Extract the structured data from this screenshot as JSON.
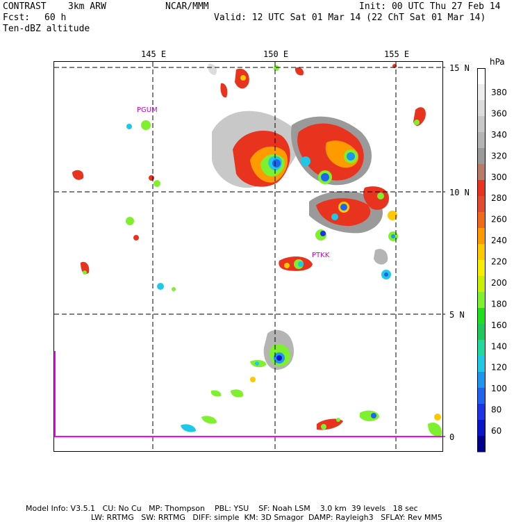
{
  "header": {
    "model": "CONTRAST",
    "resolution": "3km ARW",
    "org": "NCAR/MMM",
    "init": "Init: 00 UTC Thu 27 Feb 14",
    "fcst_label": "Fcst:",
    "fcst_value": "60 h",
    "valid": "Valid: 12 UTC Sat 01 Mar 14 (22 ChT Sat 01 Mar 14)",
    "field": "Ten-dBZ altitude"
  },
  "map": {
    "lon_labels": [
      "145 E",
      "150 E",
      "155 E"
    ],
    "lat_labels": [
      "15 N",
      "10 N",
      "5 N",
      "0"
    ],
    "stations": [
      "PGUM",
      "PTKK"
    ],
    "station_color": "#cc00cc",
    "equator_line_color": "#ff00ff"
  },
  "colorbar": {
    "unit": "hPa",
    "labels": [
      "380",
      "360",
      "340",
      "320",
      "300",
      "280",
      "260",
      "240",
      "220",
      "200",
      "180",
      "160",
      "140",
      "120",
      "100",
      "80",
      "60"
    ],
    "colors": [
      "#ffffff",
      "#eeeeee",
      "#dcdcdc",
      "#c8c8c8",
      "#b4b4b4",
      "#9a9a9a",
      "#b97a6a",
      "#e8331f",
      "#e34a2e",
      "#f06a1a",
      "#ff9a00",
      "#ffc800",
      "#f6f000",
      "#c8f000",
      "#7ef02e",
      "#1ee01e",
      "#1ec85a",
      "#20d8a0",
      "#1ec8e6",
      "#1e96f0",
      "#1e64f0",
      "#1e32e6",
      "#0a14c8",
      "#00008c"
    ]
  },
  "footer": {
    "line1": [
      "Model Info: V3.5.1",
      "CU: No Cu",
      "MP: Thompson",
      "PBL: YSU",
      "SF: Noah LSM",
      "3.0 km",
      "39 levels",
      "18 sec"
    ],
    "line2": [
      "LW: RRTMG",
      "SW: RRTMG",
      "DIFF: simple",
      "KM: 3D Smagor",
      "DAMP: Rayleigh3",
      "SFLAY: Rev MM5"
    ]
  }
}
